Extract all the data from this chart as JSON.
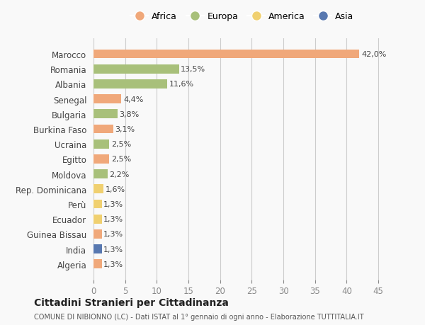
{
  "categories": [
    "Algeria",
    "India",
    "Guinea Bissau",
    "Ecuador",
    "Perù",
    "Rep. Dominicana",
    "Moldova",
    "Egitto",
    "Ucraina",
    "Burkina Faso",
    "Bulgaria",
    "Senegal",
    "Albania",
    "Romania",
    "Marocco"
  ],
  "values": [
    1.3,
    1.3,
    1.3,
    1.3,
    1.3,
    1.6,
    2.2,
    2.5,
    2.5,
    3.1,
    3.8,
    4.4,
    11.6,
    13.5,
    42.0
  ],
  "labels": [
    "1,3%",
    "1,3%",
    "1,3%",
    "1,3%",
    "1,3%",
    "1,6%",
    "2,2%",
    "2,5%",
    "2,5%",
    "3,1%",
    "3,8%",
    "4,4%",
    "11,6%",
    "13,5%",
    "42,0%"
  ],
  "continent": [
    "Africa",
    "Asia",
    "Africa",
    "America",
    "America",
    "America",
    "Europa",
    "Africa",
    "Europa",
    "Africa",
    "Europa",
    "Africa",
    "Europa",
    "Europa",
    "Africa"
  ],
  "colors": {
    "Africa": "#F0A87A",
    "Europa": "#A8C07A",
    "America": "#F0D070",
    "Asia": "#5878B0"
  },
  "legend_labels": [
    "Africa",
    "Europa",
    "America",
    "Asia"
  ],
  "legend_colors": [
    "#F0A87A",
    "#A8C07A",
    "#F0D070",
    "#5878B0"
  ],
  "title": "Cittadini Stranieri per Cittadinanza",
  "subtitle": "COMUNE DI NIBIONNO (LC) - Dati ISTAT al 1° gennaio di ogni anno - Elaborazione TUTTITALIA.IT",
  "xlim": [
    0,
    47
  ],
  "xticks": [
    0,
    5,
    10,
    15,
    20,
    25,
    30,
    35,
    40,
    45
  ],
  "background_color": "#f9f9f9"
}
